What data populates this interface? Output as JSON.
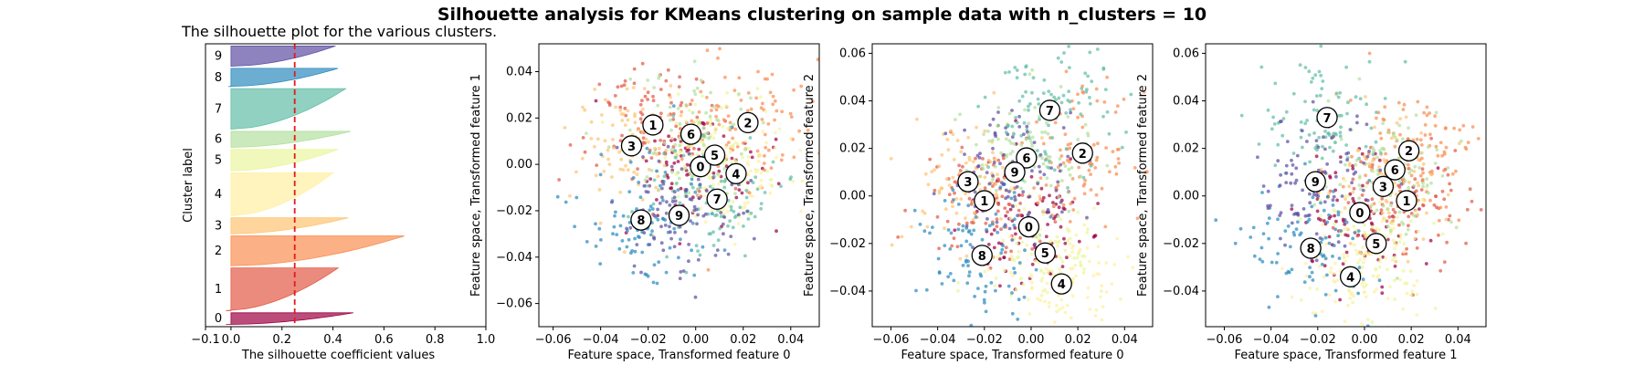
{
  "figure": {
    "title": "Silhouette analysis for KMeans clustering on sample data with n_clusters = 10"
  },
  "chart_data": [
    {
      "id": "silhouette",
      "type": "area",
      "title": "The silhouette plot for the various clusters.",
      "xlabel": "The silhouette coefficient values",
      "ylabel": "Cluster label",
      "xlim": [
        -0.1,
        1.0
      ],
      "xticks": [
        "−0.1",
        "0.0",
        "0.2",
        "0.4",
        "0.6",
        "0.8",
        "1.0"
      ],
      "xtick_values": [
        -0.1,
        0.0,
        0.2,
        0.4,
        0.6,
        0.8,
        1.0
      ],
      "average_silhouette": 0.25,
      "average_line_color": "#e41a1c",
      "clusters": [
        {
          "label": "0",
          "size": 55,
          "max": 0.48,
          "min": -0.02,
          "color": "#9e0142"
        },
        {
          "label": "1",
          "size": 200,
          "max": 0.42,
          "min": -0.02,
          "color": "#e25a46"
        },
        {
          "label": "2",
          "size": 140,
          "max": 0.68,
          "min": 0.0,
          "color": "#f98e52"
        },
        {
          "label": "3",
          "size": 75,
          "max": 0.46,
          "min": 0.0,
          "color": "#fdc573"
        },
        {
          "label": "4",
          "size": 200,
          "max": 0.4,
          "min": 0.0,
          "color": "#fff0a3"
        },
        {
          "label": "5",
          "size": 100,
          "max": 0.42,
          "min": 0.0,
          "color": "#eaf69e"
        },
        {
          "label": "6",
          "size": 75,
          "max": 0.47,
          "min": 0.0,
          "color": "#b3e0a0"
        },
        {
          "label": "7",
          "size": 190,
          "max": 0.45,
          "min": 0.0,
          "color": "#62bea6"
        },
        {
          "label": "8",
          "size": 85,
          "max": 0.42,
          "min": -0.01,
          "color": "#2d8cbf"
        },
        {
          "label": "9",
          "size": 95,
          "max": 0.41,
          "min": 0.0,
          "color": "#5e4fa2"
        }
      ]
    },
    {
      "id": "scatter_0_1",
      "type": "scatter",
      "xlabel": "Feature space, Transformed feature 0",
      "ylabel": "Feature space, Transformed feature 1",
      "xlim": [
        -0.066,
        0.052
      ],
      "ylim": [
        -0.07,
        0.052
      ],
      "xticks": [
        "−0.06",
        "−0.04",
        "−0.02",
        "0.00",
        "0.02",
        "0.04"
      ],
      "xtick_values": [
        -0.06,
        -0.04,
        -0.02,
        0.0,
        0.02,
        0.04
      ],
      "yticks": [
        "−0.06",
        "−0.04",
        "−0.02",
        "0.00",
        "0.02",
        "0.04"
      ],
      "ytick_values": [
        -0.06,
        -0.04,
        -0.02,
        0.0,
        0.02,
        0.04
      ],
      "centers": [
        {
          "label": "0",
          "x": 0.002,
          "y": -0.001
        },
        {
          "label": "1",
          "x": -0.018,
          "y": 0.017
        },
        {
          "label": "2",
          "x": 0.022,
          "y": 0.018
        },
        {
          "label": "3",
          "x": -0.027,
          "y": 0.008
        },
        {
          "label": "4",
          "x": 0.017,
          "y": -0.004
        },
        {
          "label": "5",
          "x": 0.008,
          "y": 0.004
        },
        {
          "label": "6",
          "x": -0.002,
          "y": 0.013
        },
        {
          "label": "7",
          "x": 0.009,
          "y": -0.015
        },
        {
          "label": "8",
          "x": -0.023,
          "y": -0.024
        },
        {
          "label": "9",
          "x": -0.007,
          "y": -0.022
        }
      ]
    },
    {
      "id": "scatter_0_2",
      "type": "scatter",
      "xlabel": "Feature space, Transformed feature 0",
      "ylabel": "Feature space, Transformed feature 2",
      "xlim": [
        -0.068,
        0.052
      ],
      "ylim": [
        -0.055,
        0.064
      ],
      "xticks": [
        "−0.06",
        "−0.04",
        "−0.02",
        "0.00",
        "0.02",
        "0.04"
      ],
      "xtick_values": [
        -0.06,
        -0.04,
        -0.02,
        0.0,
        0.02,
        0.04
      ],
      "yticks": [
        "−0.04",
        "−0.02",
        "0.00",
        "0.02",
        "0.04",
        "0.06"
      ],
      "ytick_values": [
        -0.04,
        -0.02,
        0.0,
        0.02,
        0.04,
        0.06
      ],
      "centers": [
        {
          "label": "0",
          "x": -0.001,
          "y": -0.013
        },
        {
          "label": "1",
          "x": -0.02,
          "y": -0.002
        },
        {
          "label": "2",
          "x": 0.022,
          "y": 0.018
        },
        {
          "label": "3",
          "x": -0.027,
          "y": 0.006
        },
        {
          "label": "4",
          "x": 0.013,
          "y": -0.037
        },
        {
          "label": "5",
          "x": 0.006,
          "y": -0.024
        },
        {
          "label": "6",
          "x": -0.002,
          "y": 0.016
        },
        {
          "label": "7",
          "x": 0.008,
          "y": 0.036
        },
        {
          "label": "8",
          "x": -0.021,
          "y": -0.025
        },
        {
          "label": "9",
          "x": -0.007,
          "y": 0.01
        }
      ]
    },
    {
      "id": "scatter_1_2",
      "type": "scatter",
      "xlabel": "Feature space, Transformed feature 1",
      "ylabel": "Feature space, Transformed feature 2",
      "xlim": [
        -0.068,
        0.052
      ],
      "ylim": [
        -0.055,
        0.064
      ],
      "xticks": [
        "−0.06",
        "−0.04",
        "−0.02",
        "0.00",
        "0.02",
        "0.04"
      ],
      "xtick_values": [
        -0.06,
        -0.04,
        -0.02,
        0.0,
        0.02,
        0.04
      ],
      "yticks": [
        "−0.04",
        "−0.02",
        "0.00",
        "0.02",
        "0.04",
        "0.06"
      ],
      "ytick_values": [
        -0.04,
        -0.02,
        0.0,
        0.02,
        0.04,
        0.06
      ],
      "centers": [
        {
          "label": "0",
          "x": -0.002,
          "y": -0.007
        },
        {
          "label": "1",
          "x": 0.018,
          "y": -0.002
        },
        {
          "label": "2",
          "x": 0.019,
          "y": 0.019
        },
        {
          "label": "3",
          "x": 0.008,
          "y": 0.004
        },
        {
          "label": "4",
          "x": -0.006,
          "y": -0.034
        },
        {
          "label": "5",
          "x": 0.005,
          "y": -0.02
        },
        {
          "label": "6",
          "x": 0.013,
          "y": 0.011
        },
        {
          "label": "7",
          "x": -0.016,
          "y": 0.033
        },
        {
          "label": "8",
          "x": -0.023,
          "y": -0.022
        },
        {
          "label": "9",
          "x": -0.021,
          "y": 0.006
        }
      ]
    }
  ]
}
